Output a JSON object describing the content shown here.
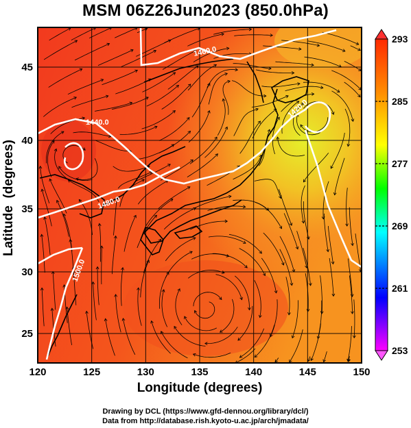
{
  "title": "MSM 06Z26Jun2023 (850.0hPa)",
  "x_axis": {
    "label": "Longitude (degrees)",
    "ticks": [
      "120",
      "125",
      "130",
      "135",
      "140",
      "145",
      "150"
    ]
  },
  "y_axis": {
    "label": "Latitude  (degrees)",
    "ticks": [
      "25",
      "30",
      "35",
      "40",
      "45"
    ]
  },
  "colorbar": {
    "ticks": [
      "293",
      "285",
      "277",
      "269",
      "261",
      "253"
    ],
    "min": 253,
    "max": 293,
    "colors": [
      "#ff00ff",
      "#0000ff",
      "#00ffff",
      "#00ff00",
      "#ffff00",
      "#ff8800",
      "#ff0000"
    ]
  },
  "contours": [
    {
      "label": "1460.0"
    },
    {
      "label": "1440.0"
    },
    {
      "label": "1420.0"
    },
    {
      "label": "1480.0"
    },
    {
      "label": "1500.0"
    }
  ],
  "credits": {
    "line1": "Drawing by DCL (https://www.gfd-dennou.org/library/dcl/)",
    "line2": "Data from http://database.rish.kyoto-u.ac.jp/arch/jmadata/"
  }
}
